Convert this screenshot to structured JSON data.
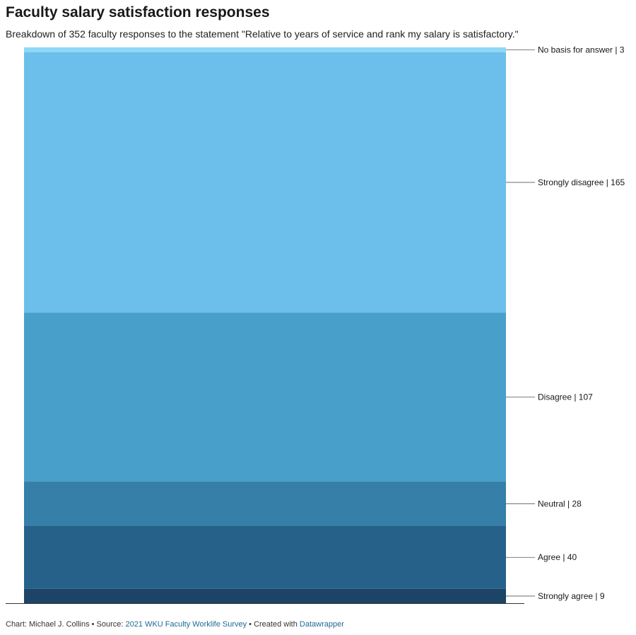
{
  "header": {
    "title": "Faculty salary satisfaction responses",
    "subtitle": "Breakdown of 352 faculty responses to the statement \"Relative to years of service and rank my salary is satisfactory.\""
  },
  "chart_data": {
    "type": "bar",
    "orientation": "stacked-vertical",
    "title": "Faculty salary satisfaction responses",
    "total": 352,
    "categories": [
      "No basis for answer",
      "Strongly disagree",
      "Disagree",
      "Neutral",
      "Agree",
      "Strongly agree"
    ],
    "values": [
      3,
      165,
      107,
      28,
      40,
      9
    ],
    "colors": [
      "#8ed8f8",
      "#6cbfea",
      "#48a0ca",
      "#357fa8",
      "#266189",
      "#1b4467"
    ],
    "labels": [
      "No basis for answer | 3",
      "Strongly disagree | 165",
      "Disagree | 107",
      "Neutral | 28",
      "Agree | 40",
      "Strongly agree | 9"
    ],
    "legend": "labels-right"
  },
  "footer": {
    "prefix": "Chart: Michael J. Collins • Source: ",
    "source_link": "2021 WKU Faculty Worklife Survey",
    "middle": " • Created with ",
    "tool_link": "Datawrapper"
  }
}
